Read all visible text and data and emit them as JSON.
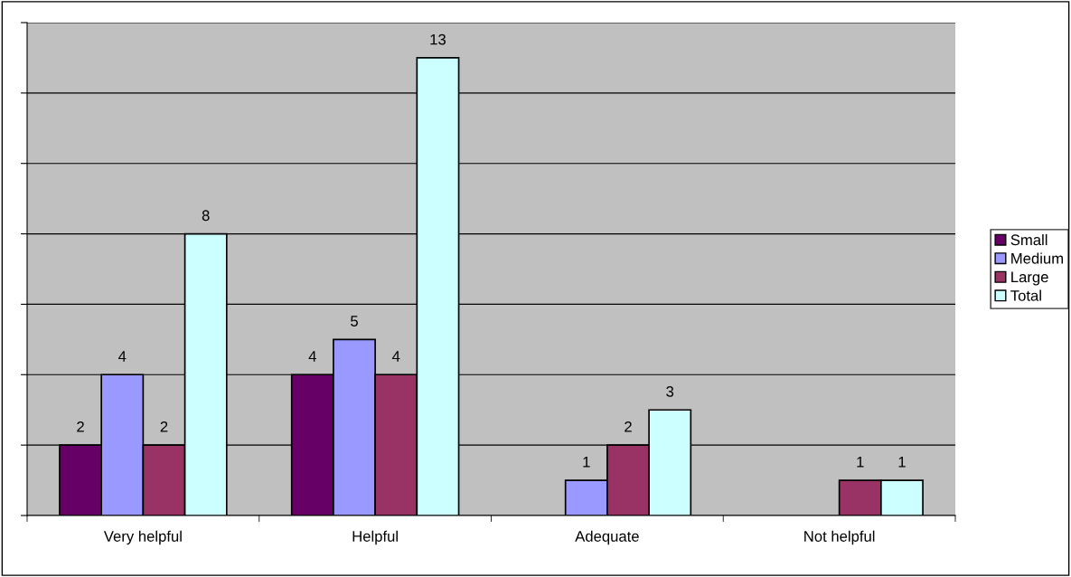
{
  "chart_data": {
    "type": "bar",
    "categories": [
      "Very helpful",
      "Helpful",
      "Adequate",
      "Not helpful"
    ],
    "series": [
      {
        "name": "Small",
        "color": "#660066",
        "values": [
          2,
          4,
          null,
          null
        ]
      },
      {
        "name": "Medium",
        "color": "#9999ff",
        "values": [
          4,
          5,
          1,
          null
        ]
      },
      {
        "name": "Large",
        "color": "#993366",
        "values": [
          2,
          4,
          2,
          1
        ]
      },
      {
        "name": "Total",
        "color": "#ccffff",
        "values": [
          8,
          13,
          3,
          1
        ]
      }
    ],
    "ylim": [
      0,
      14
    ],
    "yticks": [
      {
        "value": 0,
        "label": null
      },
      {
        "value": 2,
        "label": null
      },
      {
        "value": 4,
        "label": null
      },
      {
        "value": 6,
        "label": null
      },
      {
        "value": 8,
        "label": null
      },
      {
        "value": 10,
        "label": null
      },
      {
        "value": 12,
        "label": null
      },
      {
        "value": 14,
        "label": null
      }
    ],
    "tick_labels": "x",
    "grid": "y",
    "legend": "right",
    "data_labels": true
  }
}
